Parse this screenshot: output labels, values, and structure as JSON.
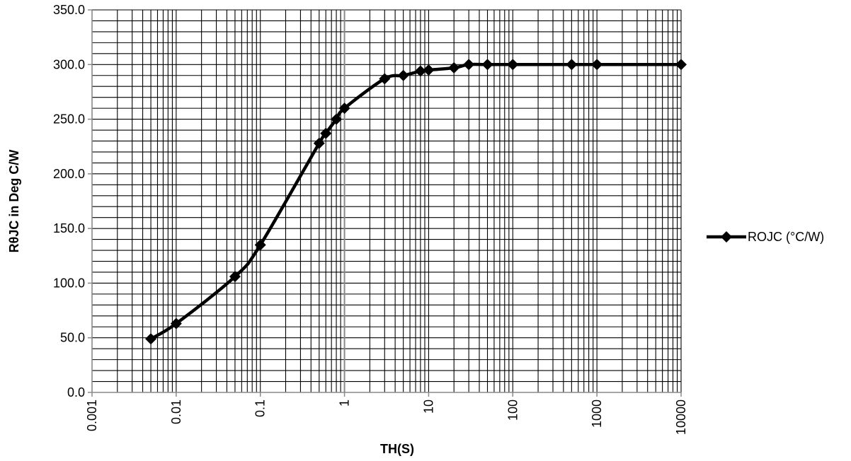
{
  "chart_data": {
    "type": "line",
    "title": "",
    "xlabel": "TH(S)",
    "ylabel": "RθJC in Deg C/W",
    "x_scale": "log",
    "xlim": [
      0.001,
      10000
    ],
    "ylim": [
      0,
      350
    ],
    "x_tick_labels": [
      "0.001",
      "0.01",
      "0.1",
      "1",
      "10",
      "100",
      "1000",
      "10000"
    ],
    "y_tick_labels": [
      "0.0",
      "50.0",
      "100.0",
      "150.0",
      "200.0",
      "250.0",
      "300.0",
      "350.0"
    ],
    "grid": true,
    "legend_position": "right",
    "series": [
      {
        "name": "ROJC (°C/W)",
        "color": "#000000",
        "marker": "diamond",
        "x": [
          0.005,
          0.01,
          0.05,
          0.1,
          0.5,
          0.6,
          0.8,
          1,
          3,
          5,
          8,
          10,
          20,
          30,
          50,
          100,
          500,
          1000,
          10000
        ],
        "y": [
          49,
          63,
          106,
          135,
          228,
          237,
          250,
          260,
          287,
          290,
          294,
          295,
          297,
          300,
          300,
          300,
          300,
          300,
          300
        ]
      }
    ]
  }
}
